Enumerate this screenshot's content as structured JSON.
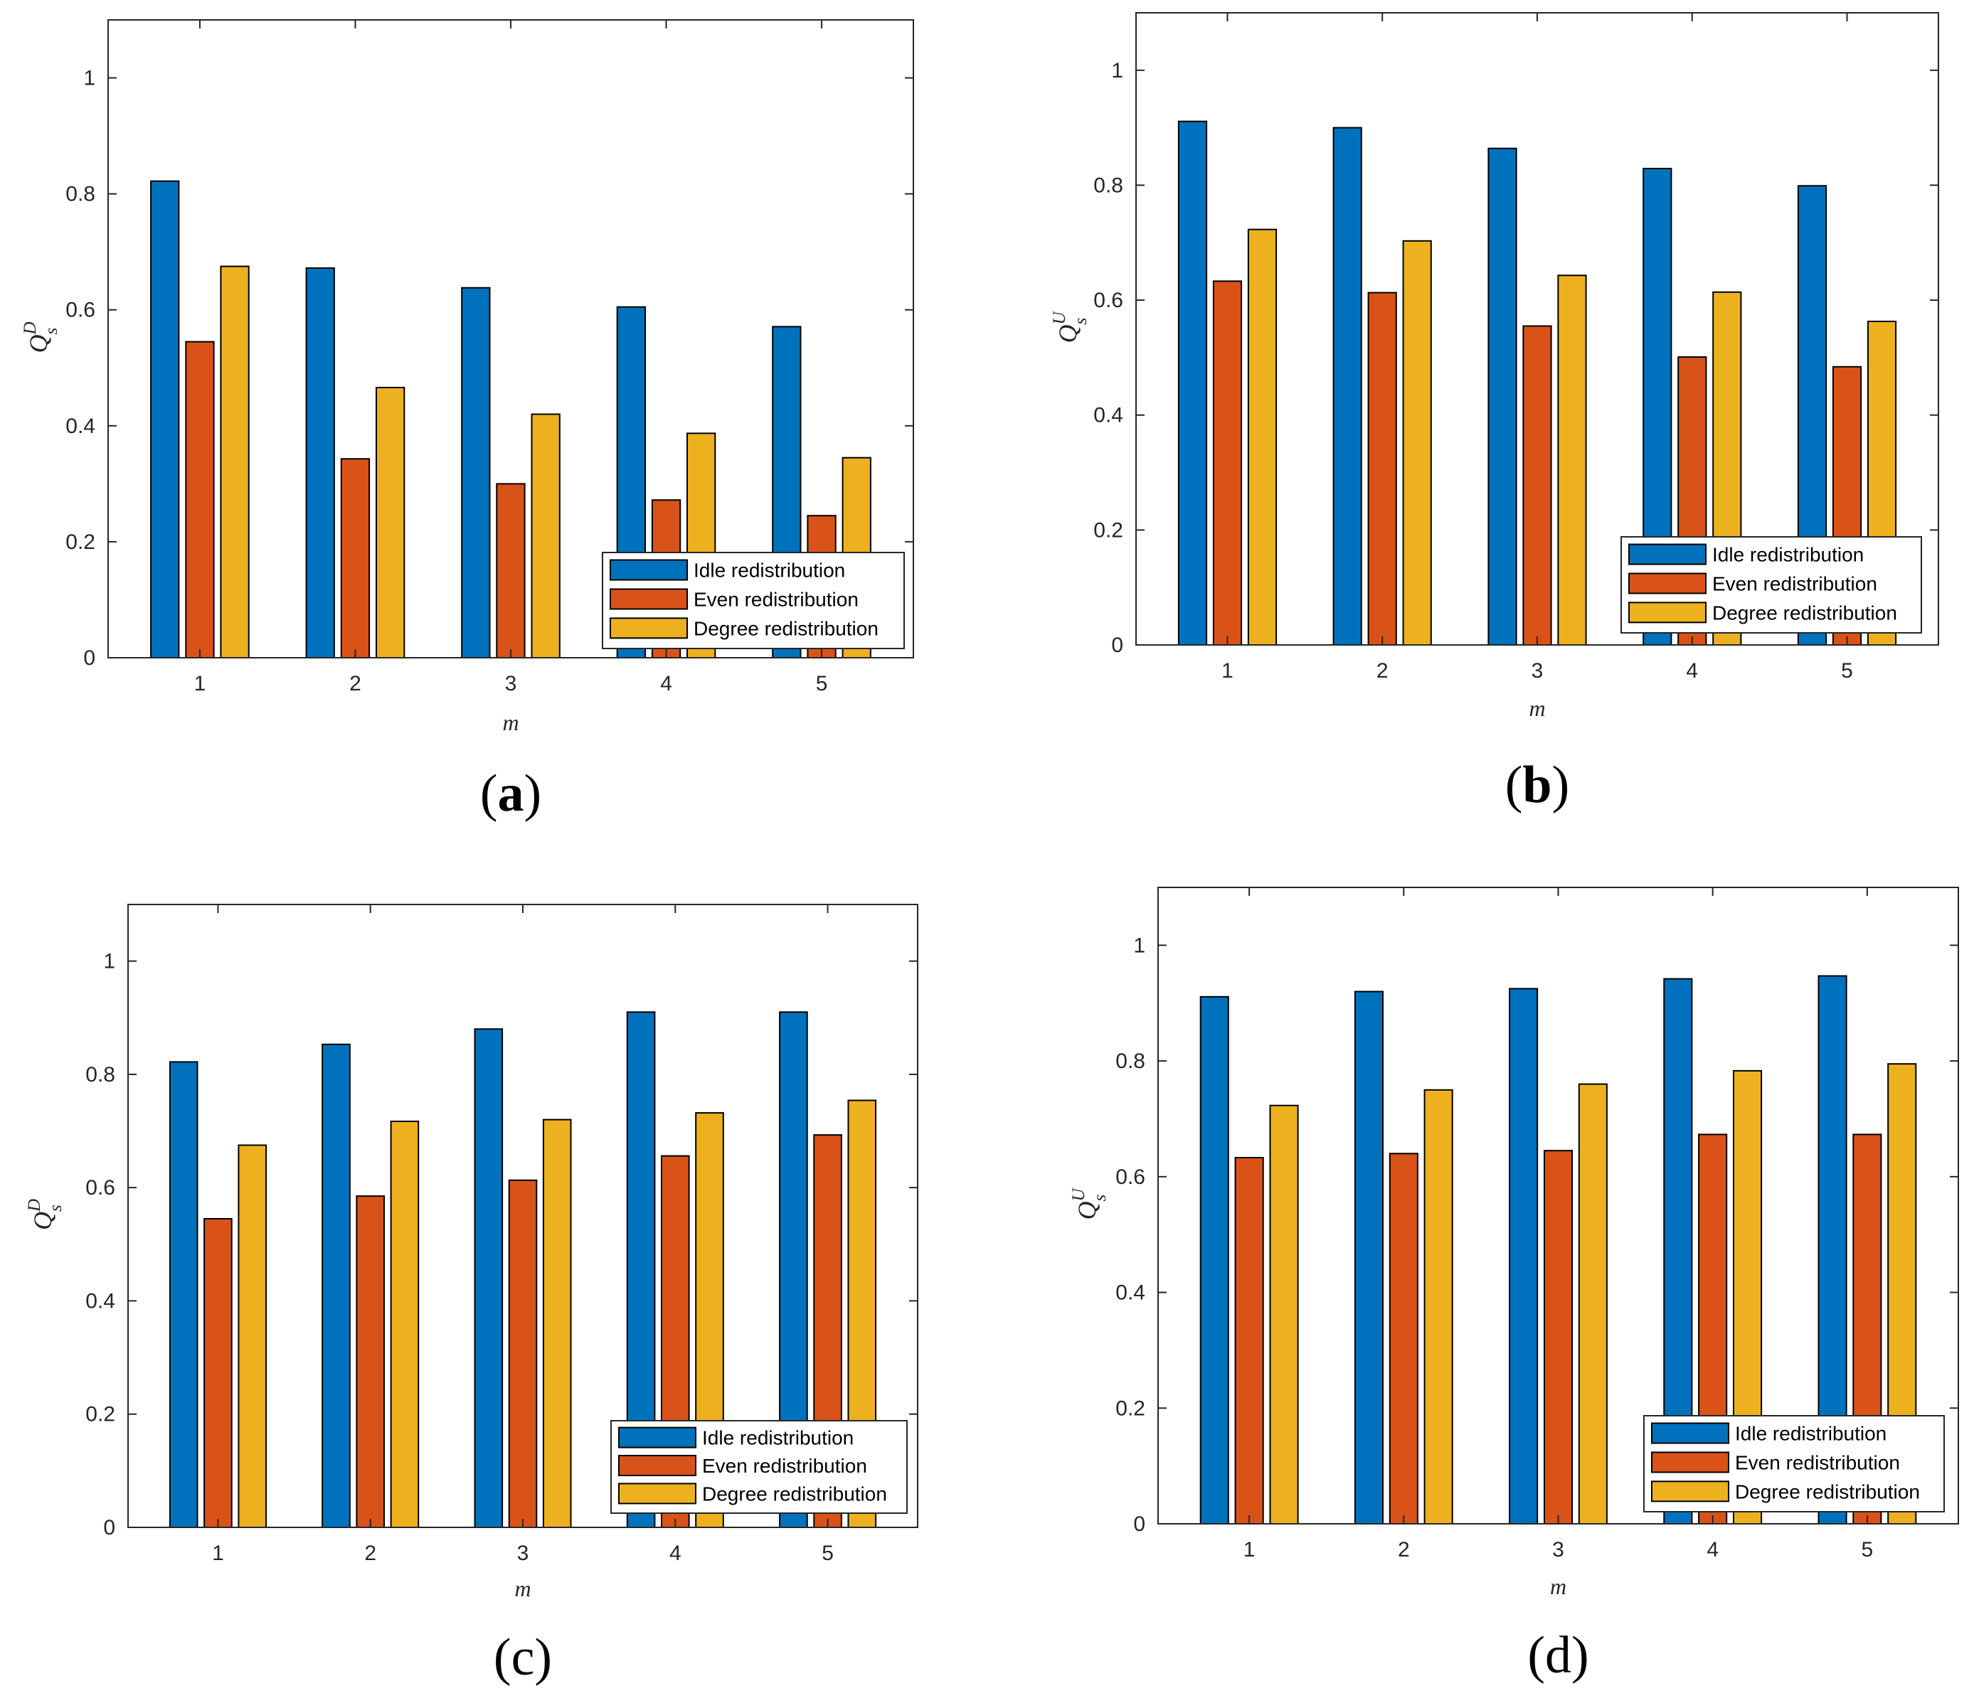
{
  "chart_data": [
    {
      "id": "a",
      "type": "bar",
      "panel_label": "(a)",
      "panel_letter_bold": true,
      "categories": [
        "1",
        "2",
        "3",
        "4",
        "5"
      ],
      "series": [
        {
          "name": "Idle redistribution",
          "values": [
            0.822,
            0.672,
            0.638,
            0.605,
            0.571
          ]
        },
        {
          "name": "Even redistribution",
          "values": [
            0.545,
            0.343,
            0.3,
            0.272,
            0.245
          ]
        },
        {
          "name": "Degree redistribution",
          "values": [
            0.675,
            0.466,
            0.42,
            0.387,
            0.345
          ]
        }
      ],
      "xlabel": "m",
      "ylabel": {
        "main": "Q",
        "sup": "D",
        "sub": "s"
      },
      "ylim": [
        0,
        1.1
      ],
      "yticks": [
        0,
        0.2,
        0.4,
        0.6,
        0.8,
        1
      ],
      "ytick_labels": [
        "0",
        "0.2",
        "0.4",
        "0.6",
        "0.8",
        "1"
      ],
      "legend_loc": "bottom-right"
    },
    {
      "id": "b",
      "type": "bar",
      "panel_label": "(b)",
      "panel_letter_bold": true,
      "categories": [
        "1",
        "2",
        "3",
        "4",
        "5"
      ],
      "series": [
        {
          "name": "Idle redistribution",
          "values": [
            0.911,
            0.9,
            0.864,
            0.829,
            0.799
          ]
        },
        {
          "name": "Even redistribution",
          "values": [
            0.633,
            0.613,
            0.555,
            0.501,
            0.484
          ]
        },
        {
          "name": "Degree redistribution",
          "values": [
            0.723,
            0.703,
            0.643,
            0.614,
            0.563
          ]
        }
      ],
      "xlabel": "m",
      "ylabel": {
        "main": "Q",
        "sup": "U",
        "sub": "s"
      },
      "ylim": [
        0,
        1.1
      ],
      "yticks": [
        0,
        0.2,
        0.4,
        0.6,
        0.8,
        1
      ],
      "ytick_labels": [
        "0",
        "0.2",
        "0.4",
        "0.6",
        "0.8",
        "1"
      ],
      "legend_loc": "bottom-right"
    },
    {
      "id": "c",
      "type": "bar",
      "panel_label": "(c)",
      "panel_letter_bold": false,
      "categories": [
        "1",
        "2",
        "3",
        "4",
        "5"
      ],
      "series": [
        {
          "name": "Idle redistribution",
          "values": [
            0.822,
            0.853,
            0.88,
            0.91,
            0.91
          ]
        },
        {
          "name": "Even redistribution",
          "values": [
            0.545,
            0.585,
            0.613,
            0.656,
            0.693
          ]
        },
        {
          "name": "Degree redistribution",
          "values": [
            0.675,
            0.717,
            0.72,
            0.732,
            0.754
          ]
        }
      ],
      "xlabel": "m",
      "ylabel": {
        "main": "Q",
        "sup": "D",
        "sub": "s"
      },
      "ylim": [
        0,
        1.1
      ],
      "yticks": [
        0,
        0.2,
        0.4,
        0.6,
        0.8,
        1
      ],
      "ytick_labels": [
        "0",
        "0.2",
        "0.4",
        "0.6",
        "0.8",
        "1"
      ],
      "legend_loc": "bottom-right"
    },
    {
      "id": "d",
      "type": "bar",
      "panel_label": "(d)",
      "panel_letter_bold": false,
      "categories": [
        "1",
        "2",
        "3",
        "4",
        "5"
      ],
      "series": [
        {
          "name": "Idle redistribution",
          "values": [
            0.911,
            0.92,
            0.925,
            0.942,
            0.947
          ]
        },
        {
          "name": "Even redistribution",
          "values": [
            0.633,
            0.64,
            0.645,
            0.673,
            0.673
          ]
        },
        {
          "name": "Degree redistribution",
          "values": [
            0.723,
            0.75,
            0.76,
            0.783,
            0.795
          ]
        }
      ],
      "xlabel": "m",
      "ylabel": {
        "main": "Q",
        "sup": "U",
        "sub": "s"
      },
      "ylim": [
        0,
        1.1
      ],
      "yticks": [
        0,
        0.2,
        0.4,
        0.6,
        0.8,
        1
      ],
      "ytick_labels": [
        "0",
        "0.2",
        "0.4",
        "0.6",
        "0.8",
        "1"
      ],
      "legend_loc": "bottom-right"
    }
  ],
  "series_colors": [
    "#0072BD",
    "#D95319",
    "#EDB120"
  ]
}
